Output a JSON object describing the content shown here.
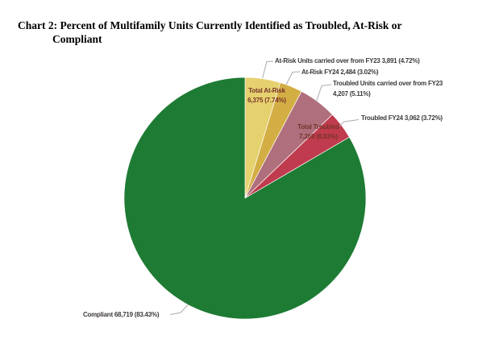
{
  "title": {
    "line1": "Chart 2: Percent of Multifamily Units Currently Identified as Troubled, At-Risk or",
    "line2": "Compliant"
  },
  "chart_data": {
    "type": "pie",
    "title": "Chart 2: Percent of Multifamily Units Currently Identified as Troubled, At-Risk or Compliant",
    "start_angle_deg": 0,
    "direction": "clockwise",
    "legend_position": "none",
    "slices": [
      {
        "name": "At-Risk Units carried over from FY23",
        "units": "3,891",
        "pct": 4.72,
        "color": "#e6d16f"
      },
      {
        "name": "At-Risk FY24",
        "units": "2,484",
        "pct": 3.02,
        "color": "#d3ae44"
      },
      {
        "name": "Troubled Units carried over from FY23",
        "units": "4,207",
        "pct": 5.11,
        "color": "#af6f7c"
      },
      {
        "name": "Troubled FY24",
        "units": "3,062",
        "pct": 3.72,
        "color": "#c03b4d"
      },
      {
        "name": "Compliant",
        "units": "68,719",
        "pct": 83.43,
        "color": "#1e7b33"
      }
    ],
    "group_totals": [
      {
        "name": "Total At-Risk",
        "units": "6,375",
        "pct": 7.74
      },
      {
        "name": "Total Troubled",
        "units": "7,269",
        "pct": 8.83
      }
    ]
  },
  "callouts": {
    "at_risk_carry": "At-Risk Units carried over from FY23 3,891 (4.72%)",
    "at_risk_fy24": "At-Risk FY24 2,484 (3.02%)",
    "troubled_carry_line1": "Troubled Units carried over from FY23",
    "troubled_carry_line2": "4,207 (5.11%)",
    "troubled_fy24": "Troubled FY24 3,062 (3.72%)",
    "compliant": "Compliant 68,719 (83.43%)"
  },
  "slice_labels": {
    "total_at_risk_line1": "Total At-Risk",
    "total_at_risk_line2": "6,375 (7.74%)",
    "total_troubled_line1": "Total Troubled",
    "total_troubled_line2": "7,269 (8.83%)"
  },
  "colors": {
    "at_risk_carry": "#e6d16f",
    "at_risk_fy24": "#d3ae44",
    "troubled_carry": "#af6f7c",
    "troubled_fy24": "#c03b4d",
    "compliant": "#1e7b33",
    "leader_line": "#ababab",
    "callout_text": "#3e3a39",
    "slice_label_text": "#76352a"
  }
}
